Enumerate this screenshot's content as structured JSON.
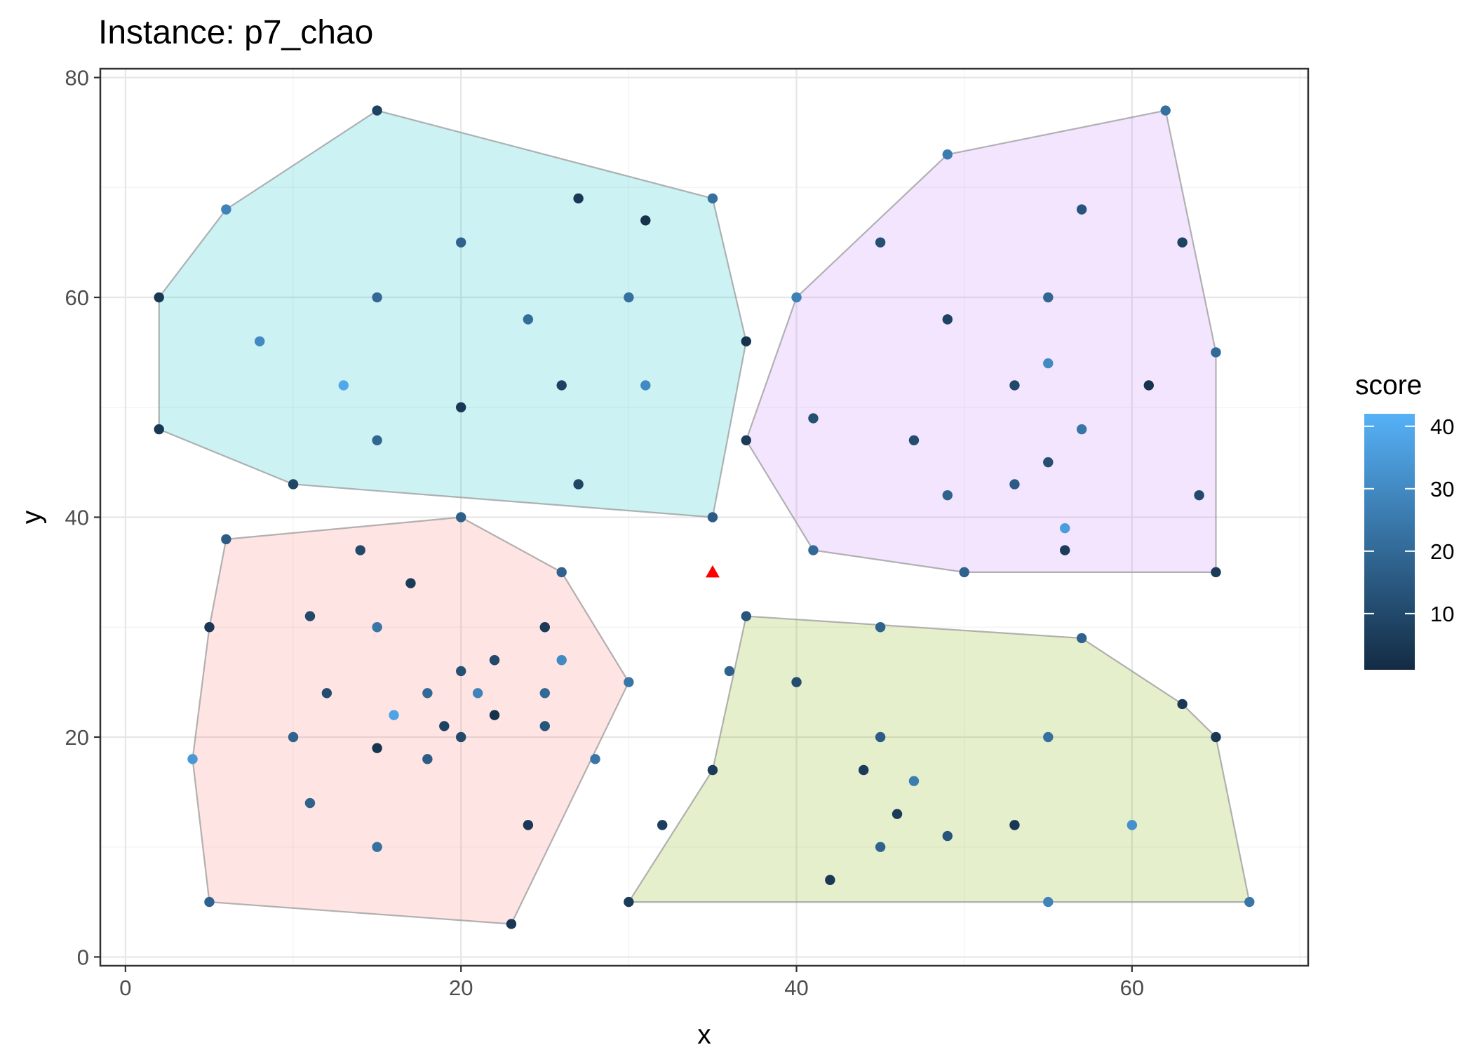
{
  "chart_data": {
    "type": "scatter",
    "title": "Instance: p7_chao",
    "xlabel": "x",
    "ylabel": "y",
    "xlim": [
      -1.5,
      70.5
    ],
    "ylim": [
      -0.8,
      80.8
    ],
    "xticks": [
      0,
      20,
      40,
      60
    ],
    "yticks": [
      0,
      20,
      40,
      60,
      80
    ],
    "grid": true,
    "color_scale": {
      "name": "score",
      "min": 1,
      "max": 42,
      "ticks": [
        10,
        20,
        30,
        40
      ],
      "low_color": "#132B43",
      "high_color": "#56B1F7"
    },
    "depot": {
      "x": 35,
      "y": 35,
      "color": "#ff0000",
      "shape": "triangle"
    },
    "hulls": [
      {
        "fill": "#00BFC4",
        "points": [
          [
            2,
            60
          ],
          [
            6,
            68
          ],
          [
            15,
            77
          ],
          [
            35,
            69
          ],
          [
            37,
            56
          ],
          [
            35,
            40
          ],
          [
            10,
            43
          ],
          [
            2,
            48
          ]
        ]
      },
      {
        "fill": "#C77CFF",
        "points": [
          [
            40,
            60
          ],
          [
            49,
            73
          ],
          [
            62,
            77
          ],
          [
            65,
            55
          ],
          [
            65,
            35
          ],
          [
            50,
            35
          ],
          [
            41,
            37
          ],
          [
            37,
            47
          ]
        ]
      },
      {
        "fill": "#F8766D",
        "points": [
          [
            6,
            38
          ],
          [
            20,
            40
          ],
          [
            26,
            35
          ],
          [
            30,
            25
          ],
          [
            23,
            3
          ],
          [
            5,
            5
          ],
          [
            4,
            18
          ],
          [
            5,
            30
          ]
        ]
      },
      {
        "fill": "#7CAE00",
        "points": [
          [
            37,
            31
          ],
          [
            57,
            29
          ],
          [
            63,
            23
          ],
          [
            65,
            20
          ],
          [
            67,
            5
          ],
          [
            30,
            5
          ],
          [
            35,
            17
          ]
        ]
      }
    ],
    "points": [
      {
        "x": 15,
        "y": 77,
        "score": 8
      },
      {
        "x": 6,
        "y": 68,
        "score": 28
      },
      {
        "x": 27,
        "y": 69,
        "score": 5
      },
      {
        "x": 35,
        "y": 69,
        "score": 22
      },
      {
        "x": 31,
        "y": 67,
        "score": 3
      },
      {
        "x": 20,
        "y": 65,
        "score": 18
      },
      {
        "x": 2,
        "y": 60,
        "score": 5
      },
      {
        "x": 15,
        "y": 60,
        "score": 20
      },
      {
        "x": 30,
        "y": 60,
        "score": 22
      },
      {
        "x": 24,
        "y": 58,
        "score": 21
      },
      {
        "x": 8,
        "y": 56,
        "score": 30
      },
      {
        "x": 37,
        "y": 56,
        "score": 3
      },
      {
        "x": 13,
        "y": 52,
        "score": 39
      },
      {
        "x": 26,
        "y": 52,
        "score": 8
      },
      {
        "x": 31,
        "y": 52,
        "score": 30
      },
      {
        "x": 20,
        "y": 50,
        "score": 5
      },
      {
        "x": 2,
        "y": 48,
        "score": 5
      },
      {
        "x": 15,
        "y": 47,
        "score": 19
      },
      {
        "x": 10,
        "y": 43,
        "score": 9
      },
      {
        "x": 27,
        "y": 43,
        "score": 9
      },
      {
        "x": 35,
        "y": 40,
        "score": 16
      },
      {
        "x": 62,
        "y": 77,
        "score": 22
      },
      {
        "x": 49,
        "y": 73,
        "score": 26
      },
      {
        "x": 57,
        "y": 68,
        "score": 14
      },
      {
        "x": 45,
        "y": 65,
        "score": 12
      },
      {
        "x": 63,
        "y": 65,
        "score": 8
      },
      {
        "x": 40,
        "y": 60,
        "score": 27
      },
      {
        "x": 55,
        "y": 60,
        "score": 19
      },
      {
        "x": 49,
        "y": 58,
        "score": 8
      },
      {
        "x": 65,
        "y": 55,
        "score": 20
      },
      {
        "x": 55,
        "y": 54,
        "score": 30
      },
      {
        "x": 53,
        "y": 52,
        "score": 10
      },
      {
        "x": 61,
        "y": 52,
        "score": 3
      },
      {
        "x": 41,
        "y": 49,
        "score": 12
      },
      {
        "x": 57,
        "y": 48,
        "score": 24
      },
      {
        "x": 37,
        "y": 47,
        "score": 6
      },
      {
        "x": 47,
        "y": 47,
        "score": 11
      },
      {
        "x": 55,
        "y": 45,
        "score": 12
      },
      {
        "x": 53,
        "y": 43,
        "score": 16
      },
      {
        "x": 49,
        "y": 42,
        "score": 18
      },
      {
        "x": 64,
        "y": 42,
        "score": 10
      },
      {
        "x": 56,
        "y": 39,
        "score": 36
      },
      {
        "x": 41,
        "y": 37,
        "score": 20
      },
      {
        "x": 56,
        "y": 37,
        "score": 6
      },
      {
        "x": 50,
        "y": 35,
        "score": 18
      },
      {
        "x": 65,
        "y": 35,
        "score": 6
      },
      {
        "x": 6,
        "y": 38,
        "score": 16
      },
      {
        "x": 20,
        "y": 40,
        "score": 17
      },
      {
        "x": 14,
        "y": 37,
        "score": 10
      },
      {
        "x": 26,
        "y": 35,
        "score": 18
      },
      {
        "x": 17,
        "y": 34,
        "score": 6
      },
      {
        "x": 11,
        "y": 31,
        "score": 10
      },
      {
        "x": 5,
        "y": 30,
        "score": 5
      },
      {
        "x": 15,
        "y": 30,
        "score": 24
      },
      {
        "x": 25,
        "y": 30,
        "score": 6
      },
      {
        "x": 26,
        "y": 27,
        "score": 30
      },
      {
        "x": 22,
        "y": 27,
        "score": 10
      },
      {
        "x": 20,
        "y": 26,
        "score": 12
      },
      {
        "x": 30,
        "y": 25,
        "score": 24
      },
      {
        "x": 12,
        "y": 24,
        "score": 11
      },
      {
        "x": 18,
        "y": 24,
        "score": 20
      },
      {
        "x": 21,
        "y": 24,
        "score": 28
      },
      {
        "x": 25,
        "y": 24,
        "score": 20
      },
      {
        "x": 16,
        "y": 22,
        "score": 38
      },
      {
        "x": 22,
        "y": 22,
        "score": 3
      },
      {
        "x": 19,
        "y": 21,
        "score": 8
      },
      {
        "x": 25,
        "y": 21,
        "score": 14
      },
      {
        "x": 10,
        "y": 20,
        "score": 18
      },
      {
        "x": 20,
        "y": 20,
        "score": 10
      },
      {
        "x": 15,
        "y": 19,
        "score": 4
      },
      {
        "x": 4,
        "y": 18,
        "score": 34
      },
      {
        "x": 18,
        "y": 18,
        "score": 16
      },
      {
        "x": 28,
        "y": 18,
        "score": 24
      },
      {
        "x": 11,
        "y": 14,
        "score": 18
      },
      {
        "x": 24,
        "y": 12,
        "score": 5
      },
      {
        "x": 15,
        "y": 10,
        "score": 22
      },
      {
        "x": 5,
        "y": 5,
        "score": 18
      },
      {
        "x": 23,
        "y": 3,
        "score": 5
      },
      {
        "x": 37,
        "y": 31,
        "score": 14
      },
      {
        "x": 45,
        "y": 30,
        "score": 18
      },
      {
        "x": 57,
        "y": 29,
        "score": 18
      },
      {
        "x": 36,
        "y": 26,
        "score": 18
      },
      {
        "x": 40,
        "y": 25,
        "score": 11
      },
      {
        "x": 63,
        "y": 23,
        "score": 5
      },
      {
        "x": 45,
        "y": 20,
        "score": 16
      },
      {
        "x": 55,
        "y": 20,
        "score": 22
      },
      {
        "x": 65,
        "y": 20,
        "score": 5
      },
      {
        "x": 35,
        "y": 17,
        "score": 6
      },
      {
        "x": 44,
        "y": 17,
        "score": 6
      },
      {
        "x": 47,
        "y": 16,
        "score": 26
      },
      {
        "x": 46,
        "y": 13,
        "score": 6
      },
      {
        "x": 32,
        "y": 12,
        "score": 7
      },
      {
        "x": 53,
        "y": 12,
        "score": 5
      },
      {
        "x": 60,
        "y": 12,
        "score": 32
      },
      {
        "x": 49,
        "y": 11,
        "score": 14
      },
      {
        "x": 45,
        "y": 10,
        "score": 18
      },
      {
        "x": 42,
        "y": 7,
        "score": 5
      },
      {
        "x": 30,
        "y": 5,
        "score": 6
      },
      {
        "x": 55,
        "y": 5,
        "score": 28
      },
      {
        "x": 67,
        "y": 5,
        "score": 24
      }
    ]
  }
}
